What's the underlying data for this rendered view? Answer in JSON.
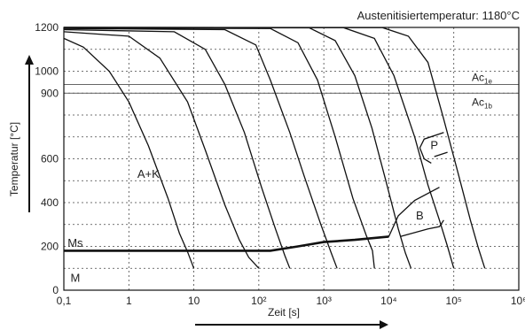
{
  "chart_data": {
    "type": "line",
    "title": "Austenitisiertemperatur: 1180°C",
    "xlabel": "Zeit [s]",
    "ylabel": "Temperatur [°C]",
    "xscale": "log",
    "xlim": [
      0.1,
      1000000
    ],
    "ylim": [
      0,
      1200
    ],
    "x_ticks": [
      {
        "value": 0.1,
        "label": "0,1"
      },
      {
        "value": 1,
        "label": "1"
      },
      {
        "value": 10,
        "label": "10"
      },
      {
        "value": 100,
        "label": "10²"
      },
      {
        "value": 1000,
        "label": "10³"
      },
      {
        "value": 10000,
        "label": "10⁴"
      },
      {
        "value": 100000,
        "label": "10⁵"
      },
      {
        "value": 1000000,
        "label": "10⁶"
      }
    ],
    "y_ticks": [
      {
        "value": 0,
        "label": "0"
      },
      {
        "value": 200,
        "label": "200"
      },
      {
        "value": 400,
        "label": "400"
      },
      {
        "value": 600,
        "label": "600"
      },
      {
        "value": 900,
        "label": "900"
      },
      {
        "value": 1000,
        "label": "1000"
      },
      {
        "value": 1200,
        "label": "1200"
      }
    ],
    "grid": true,
    "reference_lines": [
      {
        "label": "Ac",
        "sub": "1e",
        "value": 940
      },
      {
        "label": "Ac",
        "sub": "1b",
        "value": 900
      }
    ],
    "region_labels": [
      {
        "text": "A+K",
        "x": 2,
        "y": 530
      },
      {
        "text": "P",
        "x": 50000,
        "y": 660
      },
      {
        "text": "B",
        "x": 30000,
        "y": 340
      },
      {
        "text": "Ms",
        "x": 0.15,
        "y": 215
      },
      {
        "text": "M",
        "x": 0.15,
        "y": 55
      }
    ],
    "series": [
      {
        "values": [
          [
            0.1,
            1150
          ],
          [
            0.2,
            1110
          ],
          [
            0.5,
            1000
          ],
          [
            1,
            860
          ],
          [
            2,
            660
          ],
          [
            4,
            420
          ],
          [
            6,
            260
          ],
          [
            8,
            175
          ],
          [
            10,
            100
          ]
        ]
      },
      {
        "values": [
          [
            0.1,
            1180
          ],
          [
            1,
            1160
          ],
          [
            3,
            1060
          ],
          [
            8,
            860
          ],
          [
            15,
            640
          ],
          [
            30,
            390
          ],
          [
            50,
            230
          ],
          [
            70,
            150
          ],
          [
            100,
            100
          ]
        ]
      },
      {
        "values": [
          [
            0.1,
            1190
          ],
          [
            5,
            1180
          ],
          [
            15,
            1100
          ],
          [
            30,
            940
          ],
          [
            60,
            720
          ],
          [
            110,
            470
          ],
          [
            180,
            280
          ],
          [
            250,
            160
          ],
          [
            300,
            100
          ]
        ]
      },
      {
        "values": [
          [
            0.1,
            1195
          ],
          [
            30,
            1190
          ],
          [
            90,
            1120
          ],
          [
            150,
            960
          ],
          [
            300,
            720
          ],
          [
            500,
            520
          ],
          [
            900,
            300
          ],
          [
            1300,
            170
          ],
          [
            1600,
            100
          ]
        ]
      },
      {
        "values": [
          [
            0.1,
            1198
          ],
          [
            150,
            1195
          ],
          [
            400,
            1130
          ],
          [
            800,
            960
          ],
          [
            1500,
            700
          ],
          [
            2800,
            420
          ],
          [
            4500,
            250
          ],
          [
            5600,
            180
          ],
          [
            6000,
            100
          ]
        ]
      },
      {
        "values": [
          [
            0.1,
            1200
          ],
          [
            600,
            1198
          ],
          [
            1500,
            1140
          ],
          [
            3000,
            980
          ],
          [
            5500,
            740
          ],
          [
            9000,
            500
          ],
          [
            14000,
            280
          ],
          [
            18000,
            170
          ],
          [
            22000,
            100
          ]
        ]
      },
      {
        "values": [
          [
            0.1,
            1200
          ],
          [
            2000,
            1199
          ],
          [
            6000,
            1150
          ],
          [
            12000,
            980
          ],
          [
            25000,
            700
          ],
          [
            40000,
            480
          ],
          [
            60000,
            320
          ],
          [
            80000,
            200
          ],
          [
            100000,
            100
          ]
        ]
      },
      {
        "values": [
          [
            0.1,
            1200
          ],
          [
            8000,
            1199
          ],
          [
            20000,
            1160
          ],
          [
            40000,
            1040
          ],
          [
            70000,
            780
          ],
          [
            120000,
            520
          ],
          [
            180000,
            320
          ],
          [
            240000,
            190
          ],
          [
            300000,
            100
          ]
        ]
      }
    ],
    "phase_boundaries": [
      {
        "name": "Ms",
        "values": [
          [
            0.1,
            180
          ],
          [
            150,
            180
          ],
          [
            400,
            200
          ],
          [
            1000,
            220
          ],
          [
            3000,
            230
          ],
          [
            10000,
            245
          ]
        ]
      },
      {
        "name": "B-start",
        "values": [
          [
            10000,
            245
          ],
          [
            14000,
            340
          ],
          [
            25000,
            410
          ],
          [
            60000,
            470
          ]
        ]
      },
      {
        "name": "B-end",
        "values": [
          [
            15000,
            245
          ],
          [
            40000,
            280
          ],
          [
            60000,
            290
          ],
          [
            70000,
            320
          ]
        ]
      },
      {
        "name": "P-start",
        "values": [
          [
            70000,
            720
          ],
          [
            35000,
            690
          ],
          [
            30000,
            650
          ],
          [
            35000,
            600
          ],
          [
            45000,
            580
          ]
        ]
      },
      {
        "name": "P-end",
        "values": [
          [
            50000,
            610
          ],
          [
            80000,
            630
          ]
        ]
      }
    ]
  }
}
